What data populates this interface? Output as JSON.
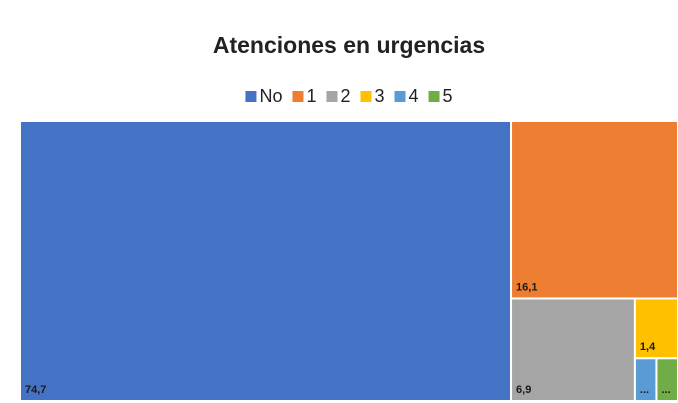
{
  "chart_data": {
    "type": "treemap",
    "title": "Atenciones en urgencias",
    "categories": [
      "No",
      "1",
      "2",
      "3",
      "4",
      "5"
    ],
    "values": [
      74.7,
      16.1,
      6.9,
      1.4,
      0.5,
      0.5
    ],
    "value_labels": [
      "74,7",
      "16,1",
      "6,9",
      "1,4",
      "...",
      "..."
    ],
    "colors": [
      "#4472c4",
      "#ed7d31",
      "#a5a5a5",
      "#ffc000",
      "#5b9bd5",
      "#70ad47"
    ],
    "legend": "top"
  }
}
